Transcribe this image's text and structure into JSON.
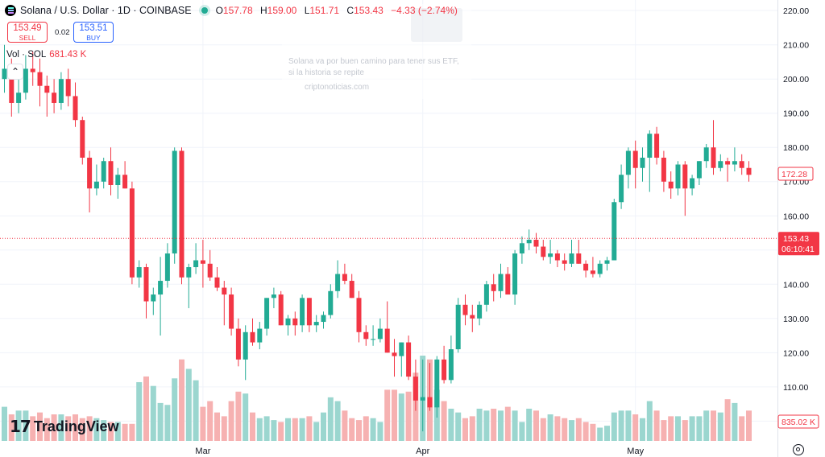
{
  "header": {
    "title": "Solana / U.S. Dollar · 1D · COINBASE",
    "open_label": "O",
    "open": "157.78",
    "high_label": "H",
    "high": "159.00",
    "low_label": "L",
    "low": "151.71",
    "close_label": "C",
    "close": "153.43",
    "change": "−4.33 (−2.74%)"
  },
  "trade": {
    "sell_price": "153.49",
    "sell_label": "SELL",
    "spread": "0.02",
    "buy_price": "153.51",
    "buy_label": "BUY"
  },
  "volume_legend": {
    "label": "Vol · SOL",
    "value": "681.43 K"
  },
  "overlay": {
    "text": "Solana va por buen camino para tener sus ETF, si la historia se repite",
    "site": "criptonoticias.com"
  },
  "logo": {
    "text": "TradingView",
    "mark": "17"
  },
  "colors": {
    "up": "#22ab94",
    "down": "#f23645",
    "vol_up": "#9bd6cf",
    "vol_down": "#f6b1b1",
    "price_line": "#f23645"
  },
  "chart_data": {
    "type": "candlestick",
    "symbol": "Solana / U.S. Dollar",
    "interval": "1D",
    "exchange": "COINBASE",
    "y_ticks": [
      "220.00",
      "210.00",
      "200.00",
      "190.00",
      "180.00",
      "170.00",
      "160.00",
      "150.00",
      "140.00",
      "130.00",
      "120.00",
      "110.00",
      "100.00"
    ],
    "y_range": [
      94.2,
      223.1
    ],
    "x_labels": [
      {
        "label": "Mar",
        "index": 28
      },
      {
        "label": "Apr",
        "index": 59
      },
      {
        "label": "May",
        "index": 89
      }
    ],
    "current_price": {
      "value": "153.43",
      "countdown": "06:10:41"
    },
    "marker_label": {
      "value": "172.28"
    },
    "volume_label": "835.02 K",
    "candles": [
      {
        "o": 200,
        "h": 210,
        "l": 196,
        "c": 203
      },
      {
        "o": 203,
        "h": 206,
        "l": 189,
        "c": 193
      },
      {
        "o": 193,
        "h": 202,
        "l": 190,
        "c": 196
      },
      {
        "o": 196,
        "h": 207,
        "l": 194,
        "c": 203
      },
      {
        "o": 203,
        "h": 208,
        "l": 198,
        "c": 202
      },
      {
        "o": 202,
        "h": 206,
        "l": 192,
        "c": 198
      },
      {
        "o": 198,
        "h": 201,
        "l": 189,
        "c": 196
      },
      {
        "o": 196,
        "h": 200,
        "l": 190,
        "c": 193
      },
      {
        "o": 193,
        "h": 202,
        "l": 191,
        "c": 200
      },
      {
        "o": 200,
        "h": 203,
        "l": 192,
        "c": 195
      },
      {
        "o": 195,
        "h": 199,
        "l": 186,
        "c": 188
      },
      {
        "o": 188,
        "h": 189,
        "l": 175,
        "c": 177
      },
      {
        "o": 177,
        "h": 179,
        "l": 161,
        "c": 168
      },
      {
        "o": 168,
        "h": 175,
        "l": 166,
        "c": 170
      },
      {
        "o": 170,
        "h": 177,
        "l": 168,
        "c": 176
      },
      {
        "o": 176,
        "h": 180,
        "l": 166,
        "c": 169
      },
      {
        "o": 169,
        "h": 174,
        "l": 165,
        "c": 172
      },
      {
        "o": 172,
        "h": 176,
        "l": 168,
        "c": 168
      },
      {
        "o": 168,
        "h": 170,
        "l": 140,
        "c": 142
      },
      {
        "o": 142,
        "h": 147,
        "l": 139,
        "c": 145
      },
      {
        "o": 145,
        "h": 146,
        "l": 130,
        "c": 135
      },
      {
        "o": 135,
        "h": 139,
        "l": 131,
        "c": 137
      },
      {
        "o": 137,
        "h": 148,
        "l": 125,
        "c": 141
      },
      {
        "o": 141,
        "h": 152,
        "l": 139,
        "c": 149
      },
      {
        "o": 149,
        "h": 180,
        "l": 146,
        "c": 179
      },
      {
        "o": 179,
        "h": 180,
        "l": 140,
        "c": 142
      },
      {
        "o": 142,
        "h": 146,
        "l": 133,
        "c": 145
      },
      {
        "o": 145,
        "h": 152,
        "l": 143,
        "c": 147
      },
      {
        "o": 147,
        "h": 153,
        "l": 139,
        "c": 146
      },
      {
        "o": 146,
        "h": 150,
        "l": 141,
        "c": 142
      },
      {
        "o": 142,
        "h": 145,
        "l": 138,
        "c": 139
      },
      {
        "o": 139,
        "h": 141,
        "l": 128,
        "c": 137
      },
      {
        "o": 137,
        "h": 139,
        "l": 125,
        "c": 127
      },
      {
        "o": 127,
        "h": 130,
        "l": 116,
        "c": 118
      },
      {
        "o": 118,
        "h": 128,
        "l": 112,
        "c": 126
      },
      {
        "o": 126,
        "h": 130,
        "l": 122,
        "c": 123
      },
      {
        "o": 123,
        "h": 129,
        "l": 121,
        "c": 127
      },
      {
        "o": 127,
        "h": 136,
        "l": 125,
        "c": 136
      },
      {
        "o": 136,
        "h": 139,
        "l": 133,
        "c": 137
      },
      {
        "o": 137,
        "h": 138,
        "l": 128,
        "c": 128
      },
      {
        "o": 128,
        "h": 131,
        "l": 125,
        "c": 130
      },
      {
        "o": 130,
        "h": 132,
        "l": 125,
        "c": 128
      },
      {
        "o": 128,
        "h": 137,
        "l": 126,
        "c": 136
      },
      {
        "o": 136,
        "h": 136,
        "l": 126,
        "c": 128
      },
      {
        "o": 128,
        "h": 131,
        "l": 126,
        "c": 129
      },
      {
        "o": 129,
        "h": 132,
        "l": 127,
        "c": 131
      },
      {
        "o": 131,
        "h": 140,
        "l": 130,
        "c": 138
      },
      {
        "o": 138,
        "h": 147,
        "l": 136,
        "c": 143
      },
      {
        "o": 143,
        "h": 146,
        "l": 140,
        "c": 141
      },
      {
        "o": 141,
        "h": 143,
        "l": 136,
        "c": 136
      },
      {
        "o": 136,
        "h": 138,
        "l": 123,
        "c": 126
      },
      {
        "o": 126,
        "h": 128,
        "l": 122,
        "c": 124
      },
      {
        "o": 124,
        "h": 128,
        "l": 122,
        "c": 124
      },
      {
        "o": 124,
        "h": 130,
        "l": 123,
        "c": 127
      },
      {
        "o": 127,
        "h": 135,
        "l": 120,
        "c": 120
      },
      {
        "o": 120,
        "h": 124,
        "l": 113,
        "c": 119
      },
      {
        "o": 119,
        "h": 123,
        "l": 113,
        "c": 123
      },
      {
        "o": 123,
        "h": 125,
        "l": 112,
        "c": 113
      },
      {
        "o": 113,
        "h": 118,
        "l": 103,
        "c": 106
      },
      {
        "o": 106,
        "h": 118,
        "l": 97,
        "c": 107
      },
      {
        "o": 107,
        "h": 117,
        "l": 103,
        "c": 104
      },
      {
        "o": 104,
        "h": 119,
        "l": 101,
        "c": 118
      },
      {
        "o": 118,
        "h": 122,
        "l": 111,
        "c": 112
      },
      {
        "o": 112,
        "h": 125,
        "l": 111,
        "c": 121
      },
      {
        "o": 121,
        "h": 136,
        "l": 120,
        "c": 134
      },
      {
        "o": 134,
        "h": 137,
        "l": 128,
        "c": 131
      },
      {
        "o": 131,
        "h": 134,
        "l": 126,
        "c": 130
      },
      {
        "o": 130,
        "h": 135,
        "l": 128,
        "c": 134
      },
      {
        "o": 134,
        "h": 141,
        "l": 132,
        "c": 140
      },
      {
        "o": 140,
        "h": 143,
        "l": 135,
        "c": 138
      },
      {
        "o": 138,
        "h": 146,
        "l": 136,
        "c": 143
      },
      {
        "o": 143,
        "h": 145,
        "l": 137,
        "c": 137
      },
      {
        "o": 137,
        "h": 150,
        "l": 134,
        "c": 149
      },
      {
        "o": 149,
        "h": 154,
        "l": 146,
        "c": 152
      },
      {
        "o": 152,
        "h": 156,
        "l": 150,
        "c": 153
      },
      {
        "o": 153,
        "h": 155,
        "l": 149,
        "c": 151
      },
      {
        "o": 151,
        "h": 153,
        "l": 147,
        "c": 148
      },
      {
        "o": 148,
        "h": 153,
        "l": 146,
        "c": 149
      },
      {
        "o": 149,
        "h": 150,
        "l": 145,
        "c": 147
      },
      {
        "o": 147,
        "h": 149,
        "l": 144,
        "c": 146
      },
      {
        "o": 146,
        "h": 153,
        "l": 145,
        "c": 149
      },
      {
        "o": 149,
        "h": 153,
        "l": 146,
        "c": 146
      },
      {
        "o": 146,
        "h": 147,
        "l": 142,
        "c": 144
      },
      {
        "o": 144,
        "h": 148,
        "l": 142,
        "c": 143
      },
      {
        "o": 143,
        "h": 147,
        "l": 142,
        "c": 146
      },
      {
        "o": 146,
        "h": 148,
        "l": 144,
        "c": 147
      },
      {
        "o": 147,
        "h": 165,
        "l": 147,
        "c": 164
      },
      {
        "o": 164,
        "h": 175,
        "l": 162,
        "c": 172
      },
      {
        "o": 172,
        "h": 180,
        "l": 168,
        "c": 179
      },
      {
        "o": 179,
        "h": 182,
        "l": 168,
        "c": 174
      },
      {
        "o": 174,
        "h": 180,
        "l": 170,
        "c": 177
      },
      {
        "o": 177,
        "h": 185,
        "l": 167,
        "c": 184
      },
      {
        "o": 184,
        "h": 186,
        "l": 175,
        "c": 177
      },
      {
        "o": 177,
        "h": 179,
        "l": 167,
        "c": 170
      },
      {
        "o": 170,
        "h": 173,
        "l": 165,
        "c": 168
      },
      {
        "o": 168,
        "h": 176,
        "l": 166,
        "c": 175
      },
      {
        "o": 175,
        "h": 176,
        "l": 160,
        "c": 168
      },
      {
        "o": 168,
        "h": 172,
        "l": 166,
        "c": 171
      },
      {
        "o": 171,
        "h": 176,
        "l": 169,
        "c": 176
      },
      {
        "o": 176,
        "h": 181,
        "l": 174,
        "c": 180
      },
      {
        "o": 180,
        "h": 188,
        "l": 172,
        "c": 174
      },
      {
        "o": 174,
        "h": 178,
        "l": 173,
        "c": 176
      },
      {
        "o": 176,
        "h": 177,
        "l": 170,
        "c": 175
      },
      {
        "o": 175,
        "h": 180,
        "l": 173,
        "c": 176
      },
      {
        "o": 176,
        "h": 178,
        "l": 172,
        "c": 174
      },
      {
        "o": 174,
        "h": 176,
        "l": 170,
        "c": 172
      }
    ],
    "volume": [
      18,
      14,
      16,
      16,
      13,
      15,
      12,
      14,
      14,
      13,
      14,
      12,
      13,
      12,
      11,
      10,
      10,
      9,
      9,
      31,
      34,
      29,
      20,
      19,
      33,
      43,
      38,
      32,
      18,
      21,
      15,
      13,
      21,
      26,
      25,
      15,
      12,
      13,
      11,
      10,
      12,
      12,
      12,
      13,
      10,
      15,
      23,
      21,
      16,
      12,
      11,
      13,
      12,
      10,
      27,
      27,
      25,
      26,
      36,
      45,
      43,
      27,
      21,
      17,
      15,
      12,
      13,
      17,
      16,
      17,
      16,
      18,
      16,
      10,
      17,
      16,
      12,
      14,
      13,
      12,
      11,
      12,
      10,
      9,
      7,
      8,
      15,
      16,
      16,
      14,
      12,
      21,
      16,
      11,
      13,
      13,
      11,
      13,
      13,
      16,
      16,
      15,
      22,
      20,
      13,
      16
    ]
  }
}
